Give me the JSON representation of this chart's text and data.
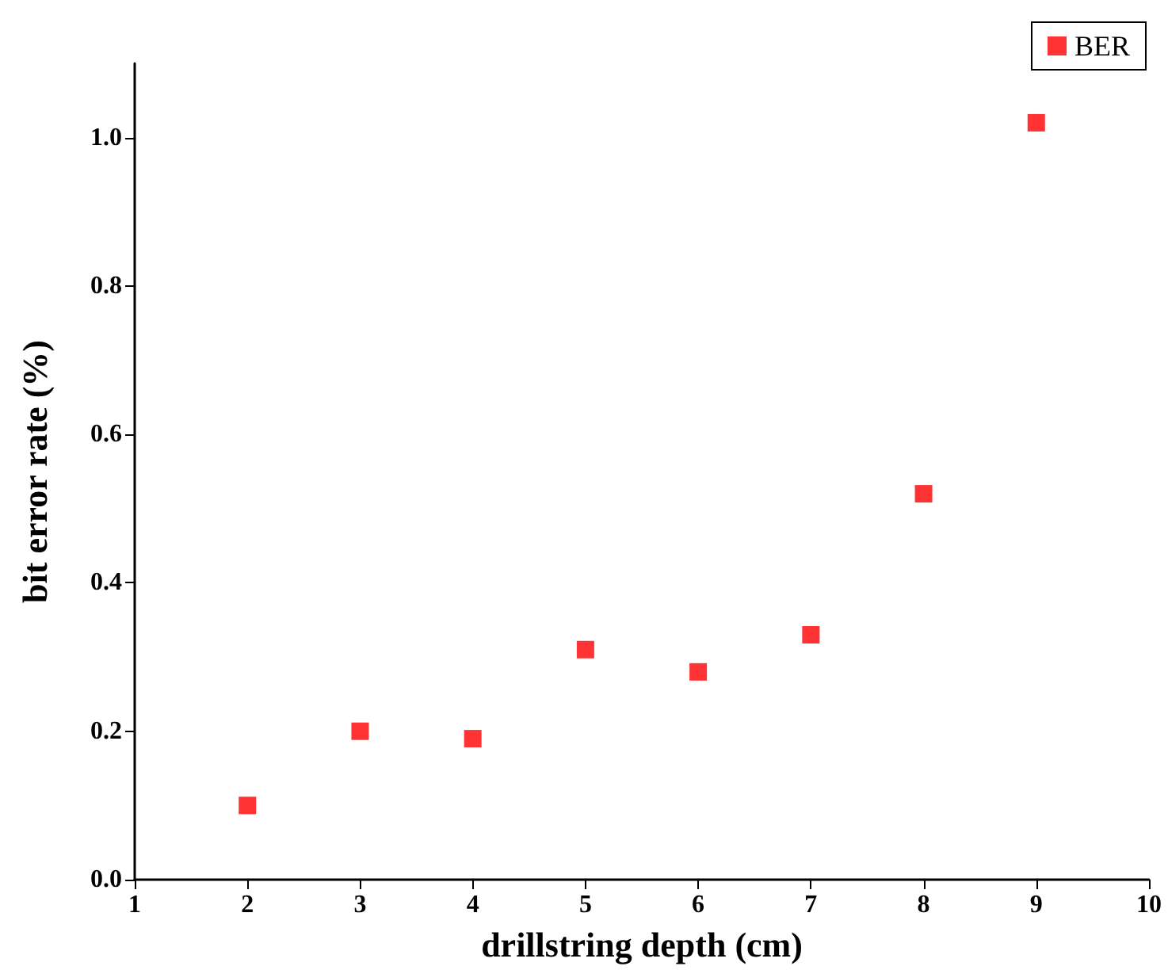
{
  "chart_data": {
    "type": "scatter",
    "xlabel": "drillstring depth (cm)",
    "ylabel": "bit error rate (%)",
    "x": [
      2,
      3,
      4,
      5,
      6,
      7,
      8,
      9
    ],
    "series": [
      {
        "name": "BER",
        "color": "#ff0000",
        "values": [
          0.1,
          0.2,
          0.19,
          0.31,
          0.28,
          0.33,
          0.52,
          1.02
        ]
      }
    ],
    "xlim": [
      1,
      10
    ],
    "xticks": [
      1,
      2,
      3,
      4,
      5,
      6,
      7,
      8,
      9,
      10
    ],
    "ylim": [
      0,
      1.1
    ],
    "yticks": [
      {
        "value": 0,
        "label": "0.0"
      },
      0.2,
      0.4,
      0.6,
      0.8,
      {
        "value": 1,
        "label": "1.0"
      }
    ],
    "marker": "square",
    "legend": "top right",
    "grid": false
  }
}
